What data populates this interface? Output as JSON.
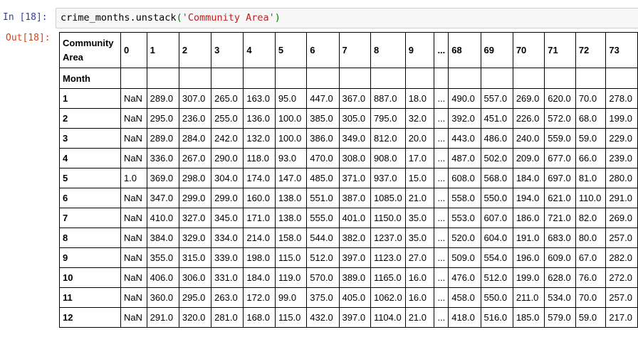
{
  "input_cell": {
    "prompt": "In [18]:",
    "code_prefix": "crime_months.unstack",
    "code_open_paren": "(",
    "code_string": "'Community Area'",
    "code_close_paren": ")"
  },
  "output_cell": {
    "prompt": "Out[18]:"
  },
  "dataframe": {
    "columns_name": "Community Area",
    "index_name": "Month",
    "columns": [
      "0",
      "1",
      "2",
      "3",
      "4",
      "5",
      "6",
      "7",
      "8",
      "9",
      "...",
      "68",
      "69",
      "70",
      "71",
      "72",
      "73"
    ],
    "rows": [
      {
        "index": "1",
        "values": [
          "NaN",
          "289.0",
          "307.0",
          "265.0",
          "163.0",
          "95.0",
          "447.0",
          "367.0",
          "887.0",
          "18.0",
          "...",
          "490.0",
          "557.0",
          "269.0",
          "620.0",
          "70.0",
          "278.0"
        ]
      },
      {
        "index": "2",
        "values": [
          "NaN",
          "295.0",
          "236.0",
          "255.0",
          "136.0",
          "100.0",
          "385.0",
          "305.0",
          "795.0",
          "32.0",
          "...",
          "392.0",
          "451.0",
          "226.0",
          "572.0",
          "68.0",
          "199.0"
        ]
      },
      {
        "index": "3",
        "values": [
          "NaN",
          "289.0",
          "284.0",
          "242.0",
          "132.0",
          "100.0",
          "386.0",
          "349.0",
          "812.0",
          "20.0",
          "...",
          "443.0",
          "486.0",
          "240.0",
          "559.0",
          "59.0",
          "229.0"
        ]
      },
      {
        "index": "4",
        "values": [
          "NaN",
          "336.0",
          "267.0",
          "290.0",
          "118.0",
          "93.0",
          "470.0",
          "308.0",
          "908.0",
          "17.0",
          "...",
          "487.0",
          "502.0",
          "209.0",
          "677.0",
          "66.0",
          "239.0"
        ]
      },
      {
        "index": "5",
        "values": [
          "1.0",
          "369.0",
          "298.0",
          "304.0",
          "174.0",
          "147.0",
          "485.0",
          "371.0",
          "937.0",
          "15.0",
          "...",
          "608.0",
          "568.0",
          "184.0",
          "697.0",
          "81.0",
          "280.0"
        ]
      },
      {
        "index": "6",
        "values": [
          "NaN",
          "347.0",
          "299.0",
          "299.0",
          "160.0",
          "138.0",
          "551.0",
          "387.0",
          "1085.0",
          "21.0",
          "...",
          "558.0",
          "550.0",
          "194.0",
          "621.0",
          "110.0",
          "291.0"
        ]
      },
      {
        "index": "7",
        "values": [
          "NaN",
          "410.0",
          "327.0",
          "345.0",
          "171.0",
          "138.0",
          "555.0",
          "401.0",
          "1150.0",
          "35.0",
          "...",
          "553.0",
          "607.0",
          "186.0",
          "721.0",
          "82.0",
          "269.0"
        ]
      },
      {
        "index": "8",
        "values": [
          "NaN",
          "384.0",
          "329.0",
          "334.0",
          "214.0",
          "158.0",
          "544.0",
          "382.0",
          "1237.0",
          "35.0",
          "...",
          "520.0",
          "604.0",
          "191.0",
          "683.0",
          "80.0",
          "257.0"
        ]
      },
      {
        "index": "9",
        "values": [
          "NaN",
          "355.0",
          "315.0",
          "339.0",
          "198.0",
          "115.0",
          "512.0",
          "397.0",
          "1123.0",
          "27.0",
          "...",
          "509.0",
          "554.0",
          "196.0",
          "609.0",
          "67.0",
          "282.0"
        ]
      },
      {
        "index": "10",
        "values": [
          "NaN",
          "406.0",
          "306.0",
          "331.0",
          "184.0",
          "119.0",
          "570.0",
          "389.0",
          "1165.0",
          "16.0",
          "...",
          "476.0",
          "512.0",
          "199.0",
          "628.0",
          "76.0",
          "272.0"
        ]
      },
      {
        "index": "11",
        "values": [
          "NaN",
          "360.0",
          "295.0",
          "263.0",
          "172.0",
          "99.0",
          "375.0",
          "405.0",
          "1062.0",
          "16.0",
          "...",
          "458.0",
          "550.0",
          "211.0",
          "534.0",
          "70.0",
          "257.0"
        ]
      },
      {
        "index": "12",
        "values": [
          "NaN",
          "291.0",
          "320.0",
          "281.0",
          "168.0",
          "115.0",
          "432.0",
          "397.0",
          "1104.0",
          "21.0",
          "...",
          "418.0",
          "516.0",
          "185.0",
          "579.0",
          "59.0",
          "217.0"
        ]
      }
    ]
  },
  "colors": {
    "in_prompt": "#303f9f",
    "out_prompt": "#d84315",
    "code_string": "#ba2121",
    "code_paren": "#008000",
    "input_bg": "#f7f7f7"
  }
}
